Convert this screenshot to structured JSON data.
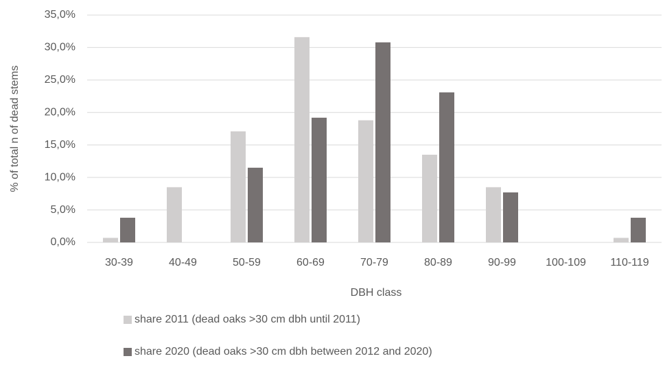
{
  "chart_data": {
    "type": "bar",
    "x_label": "DBH class",
    "y_label": "% of total n of dead stems",
    "categories": [
      "30-39",
      "40-49",
      "50-59",
      "60-69",
      "70-79",
      "80-89",
      "90-99",
      "100-109",
      "110-119"
    ],
    "series": [
      {
        "name": "share 2011 (dead oaks >30 cm dbh until 2011)",
        "color": "#d0cece",
        "values": [
          0.7,
          8.5,
          17.1,
          31.6,
          18.8,
          13.5,
          8.5,
          0,
          0.7
        ]
      },
      {
        "name": "share 2020 (dead oaks >30 cm dbh between 2012 and 2020)",
        "color": "#767171",
        "values": [
          3.8,
          0,
          11.5,
          19.2,
          30.8,
          23.1,
          7.7,
          0,
          3.8
        ]
      }
    ],
    "ylim": [
      0,
      35
    ],
    "yticks": [
      {
        "value": 0,
        "label": "0,0%"
      },
      {
        "value": 5,
        "label": "5,0%"
      },
      {
        "value": 10,
        "label": "10,0%"
      },
      {
        "value": 15,
        "label": "15,0%"
      },
      {
        "value": 20,
        "label": "20,0%"
      },
      {
        "value": 25,
        "label": "25,0%"
      },
      {
        "value": 30,
        "label": "30,0%"
      },
      {
        "value": 35,
        "label": "35,0%"
      }
    ],
    "grid": true,
    "legend": "bottom"
  }
}
